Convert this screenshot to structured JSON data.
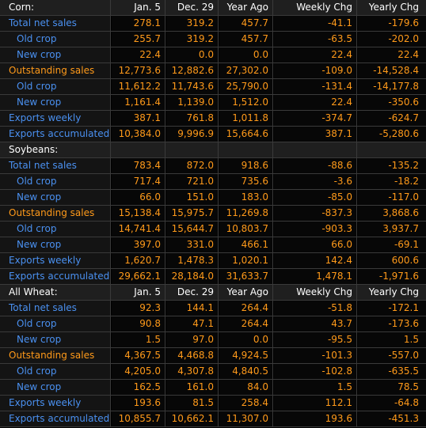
{
  "sections": [
    {
      "label": "Corn:",
      "show_headers": true,
      "rows": [
        {
          "label": "Total net sales",
          "style": "blue",
          "indent": false,
          "values": [
            "278.1",
            "319.2",
            "457.7",
            "-41.1",
            "-179.6"
          ]
        },
        {
          "label": "Old crop",
          "style": "blue",
          "indent": true,
          "values": [
            "255.7",
            "319.2",
            "457.7",
            "-63.5",
            "-202.0"
          ]
        },
        {
          "label": "New crop",
          "style": "blue",
          "indent": true,
          "values": [
            "22.4",
            "0.0",
            "0.0",
            "22.4",
            "22.4"
          ]
        },
        {
          "label": "Outstanding sales",
          "style": "orange",
          "indent": false,
          "values": [
            "12,773.6",
            "12,882.6",
            "27,302.0",
            "-109.0",
            "-14,528.4"
          ]
        },
        {
          "label": "Old crop",
          "style": "blue",
          "indent": true,
          "values": [
            "11,612.2",
            "11,743.6",
            "25,790.0",
            "-131.4",
            "-14,177.8"
          ]
        },
        {
          "label": "New crop",
          "style": "blue",
          "indent": true,
          "values": [
            "1,161.4",
            "1,139.0",
            "1,512.0",
            "22.4",
            "-350.6"
          ]
        },
        {
          "label": "Exports weekly",
          "style": "blue",
          "indent": false,
          "values": [
            "387.1",
            "761.8",
            "1,011.8",
            "-374.7",
            "-624.7"
          ]
        },
        {
          "label": "Exports accumulated",
          "style": "blue",
          "indent": false,
          "values": [
            "10,384.0",
            "9,996.9",
            "15,664.6",
            "387.1",
            "-5,280.6"
          ]
        }
      ]
    },
    {
      "label": "Soybeans:",
      "show_headers": false,
      "rows": [
        {
          "label": "Total net sales",
          "style": "blue",
          "indent": false,
          "values": [
            "783.4",
            "872.0",
            "918.6",
            "-88.6",
            "-135.2"
          ]
        },
        {
          "label": "Old crop",
          "style": "blue",
          "indent": true,
          "values": [
            "717.4",
            "721.0",
            "735.6",
            "-3.6",
            "-18.2"
          ]
        },
        {
          "label": "New crop",
          "style": "blue",
          "indent": true,
          "values": [
            "66.0",
            "151.0",
            "183.0",
            "-85.0",
            "-117.0"
          ]
        },
        {
          "label": "Outstanding sales",
          "style": "orange",
          "indent": false,
          "values": [
            "15,138.4",
            "15,975.7",
            "11,269.8",
            "-837.3",
            "3,868.6"
          ]
        },
        {
          "label": "Old crop",
          "style": "blue",
          "indent": true,
          "values": [
            "14,741.4",
            "15,644.7",
            "10,803.7",
            "-903.3",
            "3,937.7"
          ]
        },
        {
          "label": "New crop",
          "style": "blue",
          "indent": true,
          "values": [
            "397.0",
            "331.0",
            "466.1",
            "66.0",
            "-69.1"
          ]
        },
        {
          "label": "Exports weekly",
          "style": "blue",
          "indent": false,
          "values": [
            "1,620.7",
            "1,478.3",
            "1,020.1",
            "142.4",
            "600.6"
          ]
        },
        {
          "label": "Exports accumulated",
          "style": "blue",
          "indent": false,
          "values": [
            "29,662.1",
            "28,184.0",
            "31,633.7",
            "1,478.1",
            "-1,971.6"
          ]
        }
      ]
    },
    {
      "label": "All Wheat:",
      "show_headers": true,
      "rows": [
        {
          "label": "Total net sales",
          "style": "blue",
          "indent": false,
          "values": [
            "92.3",
            "144.1",
            "264.4",
            "-51.8",
            "-172.1"
          ]
        },
        {
          "label": "Old crop",
          "style": "blue",
          "indent": true,
          "values": [
            "90.8",
            "47.1",
            "264.4",
            "43.7",
            "-173.6"
          ]
        },
        {
          "label": "New crop",
          "style": "blue",
          "indent": true,
          "values": [
            "1.5",
            "97.0",
            "0.0",
            "-95.5",
            "1.5"
          ]
        },
        {
          "label": "Outstanding sales",
          "style": "orange",
          "indent": false,
          "values": [
            "4,367.5",
            "4,468.8",
            "4,924.5",
            "-101.3",
            "-557.0"
          ]
        },
        {
          "label": "Old crop",
          "style": "blue",
          "indent": true,
          "values": [
            "4,205.0",
            "4,307.8",
            "4,840.5",
            "-102.8",
            "-635.5"
          ]
        },
        {
          "label": "New crop",
          "style": "blue",
          "indent": true,
          "values": [
            "162.5",
            "161.0",
            "84.0",
            "1.5",
            "78.5"
          ]
        },
        {
          "label": "Exports weekly",
          "style": "blue",
          "indent": false,
          "values": [
            "193.6",
            "81.5",
            "258.4",
            "112.1",
            "-64.8"
          ]
        },
        {
          "label": "Exports accumulated",
          "style": "blue",
          "indent": false,
          "values": [
            "10,855.7",
            "10,662.1",
            "11,307.0",
            "193.6",
            "-451.3"
          ]
        }
      ]
    }
  ],
  "column_headers": [
    "Jan. 5",
    "Dec. 29",
    "Year Ago",
    "Weekly Chg",
    "Yearly Chg"
  ],
  "colors": {
    "background": "#000000",
    "header_bg": "#1f1f1f",
    "blue_label": "#4a90f0",
    "orange": "#ff9a1a",
    "header_text": "#ffffff"
  }
}
